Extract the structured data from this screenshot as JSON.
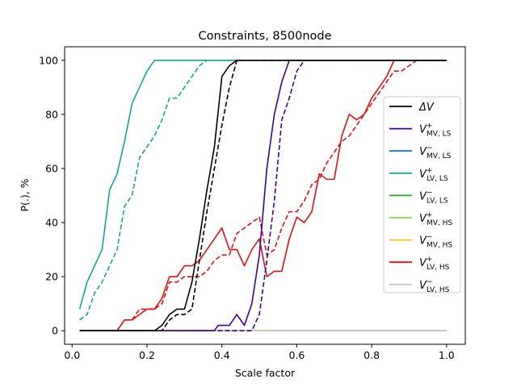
{
  "chart_data": {
    "type": "line",
    "title": "Constraints, 8500node",
    "xlabel": "Scale factor",
    "ylabel": "P(.), %",
    "xlim": [
      -0.02,
      1.05
    ],
    "ylim": [
      -5,
      105
    ],
    "xticks": [
      0.0,
      0.2,
      0.4,
      0.6,
      0.8,
      1.0
    ],
    "xtick_labels": [
      "0.0",
      "0.2",
      "0.4",
      "0.6",
      "0.8",
      "1.0"
    ],
    "yticks": [
      0,
      20,
      40,
      60,
      80,
      100
    ],
    "ytick_labels": [
      "0",
      "20",
      "40",
      "60",
      "80",
      "100"
    ],
    "legend_position": "right",
    "legend": [
      {
        "base": "ΔV",
        "sup": "",
        "sub": "",
        "color": "#000000"
      },
      {
        "base": "V",
        "sup": "+",
        "sub": "MV, LS",
        "color": "#3a0099"
      },
      {
        "base": "V",
        "sup": "−",
        "sub": "MV, LS",
        "color": "#1a72c6"
      },
      {
        "base": "V",
        "sup": "+",
        "sub": "LV, LS",
        "color": "#13a596"
      },
      {
        "base": "V",
        "sup": "−",
        "sub": "LV, LS",
        "color": "#1fa81f"
      },
      {
        "base": "V",
        "sup": "+",
        "sub": "MV, HS",
        "color": "#86e03a"
      },
      {
        "base": "V",
        "sup": "−",
        "sub": "MV, HS",
        "color": "#f5c518"
      },
      {
        "base": "V",
        "sup": "+",
        "sub": "LV, HS",
        "color": "#e01010"
      },
      {
        "base": "V",
        "sup": "−",
        "sub": "LV, HS",
        "color": "#c8c8c8"
      }
    ],
    "series": [
      {
        "legend_index": 0,
        "color": "#000000",
        "dash": false,
        "x": [
          0.02,
          0.22,
          0.24,
          0.26,
          0.28,
          0.3,
          0.32,
          0.34,
          0.36,
          0.38,
          0.4,
          0.42,
          0.44,
          1.0
        ],
        "y": [
          0,
          0,
          2,
          6,
          8,
          8,
          18,
          34,
          52,
          68,
          94,
          98,
          100,
          100
        ]
      },
      {
        "legend_index": 0,
        "color": "#000000",
        "dash": true,
        "x": [
          0.02,
          0.24,
          0.26,
          0.28,
          0.3,
          0.32,
          0.34,
          0.36,
          0.38,
          0.4,
          0.42,
          0.44,
          1.0
        ],
        "y": [
          0,
          0,
          4,
          6,
          6,
          8,
          26,
          44,
          60,
          76,
          90,
          100,
          100
        ]
      },
      {
        "legend_index": 1,
        "color": "#3a0099",
        "dash": false,
        "x": [
          0.02,
          0.38,
          0.39,
          0.4,
          0.42,
          0.44,
          0.46,
          0.48,
          0.5,
          0.52,
          0.54,
          0.56,
          0.58,
          1.0
        ],
        "y": [
          0,
          0,
          2,
          2,
          2,
          6,
          2,
          10,
          28,
          60,
          80,
          92,
          100,
          100
        ]
      },
      {
        "legend_index": 1,
        "color": "#3a0099",
        "dash": true,
        "x": [
          0.02,
          0.48,
          0.5,
          0.52,
          0.54,
          0.56,
          0.58,
          0.6,
          0.62,
          1.0
        ],
        "y": [
          0,
          0,
          6,
          26,
          48,
          78,
          86,
          96,
          100,
          100
        ]
      },
      {
        "legend_index": 2,
        "color": "#1a72c6",
        "dash": false,
        "x": [
          0.02,
          1.0
        ],
        "y": [
          0,
          0
        ]
      },
      {
        "legend_index": 3,
        "color": "#13a596",
        "dash": false,
        "x": [
          0.02,
          0.04,
          0.06,
          0.08,
          0.1,
          0.12,
          0.14,
          0.16,
          0.18,
          0.2,
          0.22,
          1.0
        ],
        "y": [
          8,
          18,
          24,
          30,
          52,
          58,
          70,
          84,
          90,
          96,
          100,
          100
        ]
      },
      {
        "legend_index": 3,
        "color": "#13a596",
        "dash": true,
        "x": [
          0.02,
          0.04,
          0.06,
          0.08,
          0.1,
          0.12,
          0.14,
          0.16,
          0.18,
          0.2,
          0.22,
          0.24,
          0.26,
          0.28,
          0.3,
          0.32,
          0.34,
          0.36,
          0.38,
          1.0
        ],
        "y": [
          4,
          6,
          14,
          18,
          24,
          30,
          46,
          50,
          64,
          68,
          72,
          78,
          86,
          86,
          90,
          94,
          98,
          100,
          100,
          100
        ]
      },
      {
        "legend_index": 4,
        "color": "#1fa81f",
        "dash": false,
        "x": [
          0.02,
          1.0
        ],
        "y": [
          0,
          0
        ]
      },
      {
        "legend_index": 5,
        "color": "#86e03a",
        "dash": false,
        "x": [
          0.02,
          1.0
        ],
        "y": [
          0,
          0
        ]
      },
      {
        "legend_index": 6,
        "color": "#f5c518",
        "dash": false,
        "x": [
          0.02,
          1.0
        ],
        "y": [
          0,
          0
        ]
      },
      {
        "legend_index": 7,
        "color": "#e01010",
        "dash": false,
        "x": [
          0.02,
          0.12,
          0.14,
          0.16,
          0.18,
          0.2,
          0.22,
          0.24,
          0.26,
          0.28,
          0.3,
          0.32,
          0.34,
          0.36,
          0.38,
          0.4,
          0.41,
          0.42,
          0.44,
          0.46,
          0.48,
          0.5,
          0.52,
          0.54,
          0.56,
          0.58,
          0.6,
          0.62,
          0.64,
          0.66,
          0.68,
          0.7,
          0.72,
          0.74,
          0.76,
          0.78,
          0.8,
          0.82,
          0.84,
          0.86,
          1.0
        ],
        "y": [
          0,
          0,
          4,
          4,
          6,
          8,
          8,
          12,
          20,
          20,
          24,
          24,
          26,
          30,
          34,
          38,
          34,
          30,
          30,
          24,
          30,
          34,
          20,
          22,
          22,
          34,
          42,
          40,
          44,
          58,
          56,
          56,
          72,
          80,
          78,
          80,
          86,
          90,
          94,
          100,
          100
        ]
      },
      {
        "legend_index": 7,
        "color": "#e01010",
        "dash": true,
        "x": [
          0.02,
          0.12,
          0.14,
          0.16,
          0.18,
          0.2,
          0.22,
          0.24,
          0.26,
          0.28,
          0.3,
          0.32,
          0.34,
          0.36,
          0.38,
          0.4,
          0.42,
          0.44,
          0.46,
          0.48,
          0.5,
          0.52,
          0.54,
          0.56,
          0.58,
          0.6,
          0.62,
          0.64,
          0.66,
          0.68,
          0.7,
          0.72,
          0.74,
          0.76,
          0.78,
          0.8,
          0.82,
          0.84,
          0.86,
          0.88,
          0.9,
          0.92,
          1.0
        ],
        "y": [
          0,
          0,
          4,
          4,
          8,
          8,
          8,
          10,
          18,
          18,
          20,
          20,
          20,
          22,
          26,
          28,
          28,
          36,
          38,
          40,
          42,
          28,
          30,
          38,
          44,
          44,
          48,
          54,
          56,
          62,
          66,
          70,
          72,
          76,
          80,
          84,
          88,
          92,
          96,
          96,
          98,
          100,
          100
        ]
      },
      {
        "legend_index": 8,
        "color": "#c8c8c8",
        "dash": false,
        "x": [
          0.02,
          1.0
        ],
        "y": [
          0,
          0
        ]
      }
    ]
  }
}
